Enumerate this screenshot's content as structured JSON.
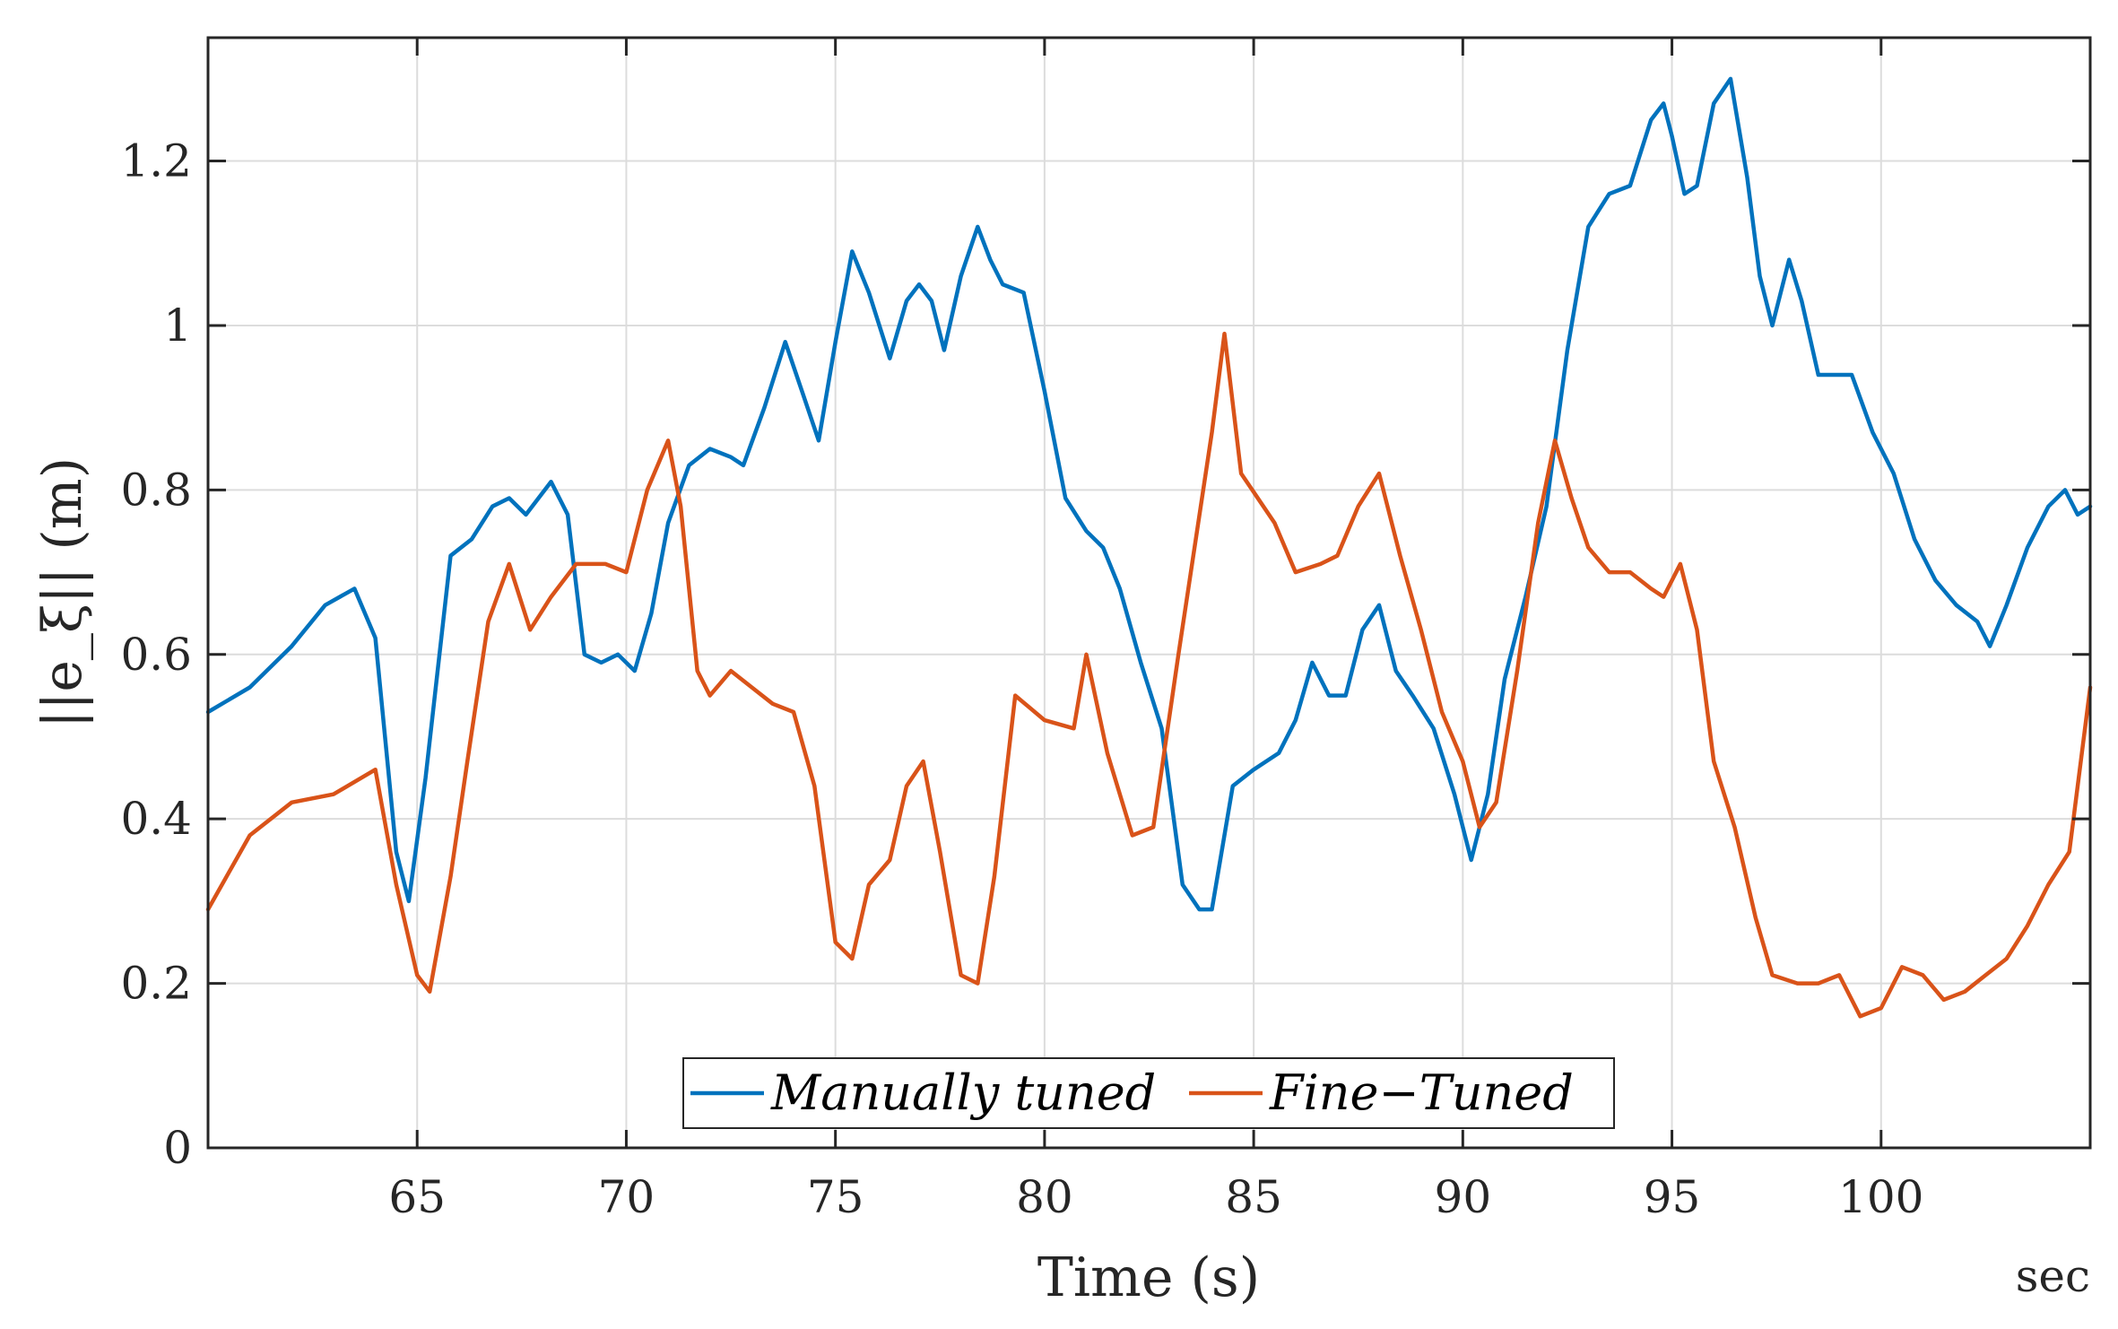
{
  "chart_data": {
    "type": "line",
    "title": "",
    "xlabel": "Time (s)",
    "ylabel": "||e_ξ|| (m)",
    "x_unit_label": "sec",
    "xlim": [
      60,
      105
    ],
    "ylim": [
      0,
      1.35
    ],
    "xticks": [
      65,
      70,
      75,
      80,
      85,
      90,
      95,
      100
    ],
    "yticks": [
      0,
      0.2,
      0.4,
      0.6,
      0.8,
      1,
      1.2
    ],
    "xtick_labels": [
      "65",
      "70",
      "75",
      "80",
      "85",
      "90",
      "95",
      "100"
    ],
    "ytick_labels": [
      "0",
      "0.2",
      "0.4",
      "0.6",
      "0.8",
      "1",
      "1.2"
    ],
    "grid": true,
    "legend_position": "bottom-center",
    "series": [
      {
        "name": "Manually tuned",
        "color": "#0072BD",
        "points": [
          [
            60,
            0.53
          ],
          [
            61,
            0.56
          ],
          [
            62,
            0.61
          ],
          [
            62.8,
            0.66
          ],
          [
            63.5,
            0.68
          ],
          [
            64,
            0.62
          ],
          [
            64.5,
            0.36
          ],
          [
            64.8,
            0.3
          ],
          [
            65.2,
            0.45
          ],
          [
            65.8,
            0.72
          ],
          [
            66.3,
            0.74
          ],
          [
            66.8,
            0.78
          ],
          [
            67.2,
            0.79
          ],
          [
            67.6,
            0.77
          ],
          [
            68.2,
            0.81
          ],
          [
            68.6,
            0.77
          ],
          [
            69,
            0.6
          ],
          [
            69.4,
            0.59
          ],
          [
            69.8,
            0.6
          ],
          [
            70.2,
            0.58
          ],
          [
            70.6,
            0.65
          ],
          [
            71,
            0.76
          ],
          [
            71.5,
            0.83
          ],
          [
            72,
            0.85
          ],
          [
            72.5,
            0.84
          ],
          [
            72.8,
            0.83
          ],
          [
            73.3,
            0.9
          ],
          [
            73.8,
            0.98
          ],
          [
            74.2,
            0.92
          ],
          [
            74.6,
            0.86
          ],
          [
            75,
            0.98
          ],
          [
            75.4,
            1.09
          ],
          [
            75.8,
            1.04
          ],
          [
            76.3,
            0.96
          ],
          [
            76.7,
            1.03
          ],
          [
            77,
            1.05
          ],
          [
            77.3,
            1.03
          ],
          [
            77.6,
            0.97
          ],
          [
            78,
            1.06
          ],
          [
            78.4,
            1.12
          ],
          [
            78.7,
            1.08
          ],
          [
            79,
            1.05
          ],
          [
            79.5,
            1.04
          ],
          [
            80,
            0.92
          ],
          [
            80.5,
            0.79
          ],
          [
            81,
            0.75
          ],
          [
            81.4,
            0.73
          ],
          [
            81.8,
            0.68
          ],
          [
            82.3,
            0.59
          ],
          [
            82.8,
            0.51
          ],
          [
            83.3,
            0.32
          ],
          [
            83.7,
            0.29
          ],
          [
            84,
            0.29
          ],
          [
            84.5,
            0.44
          ],
          [
            85,
            0.46
          ],
          [
            85.6,
            0.48
          ],
          [
            86,
            0.52
          ],
          [
            86.4,
            0.59
          ],
          [
            86.8,
            0.55
          ],
          [
            87.2,
            0.55
          ],
          [
            87.6,
            0.63
          ],
          [
            88,
            0.66
          ],
          [
            88.4,
            0.58
          ],
          [
            88.8,
            0.55
          ],
          [
            89.3,
            0.51
          ],
          [
            89.8,
            0.43
          ],
          [
            90.2,
            0.35
          ],
          [
            90.6,
            0.43
          ],
          [
            91,
            0.57
          ],
          [
            91.5,
            0.67
          ],
          [
            92,
            0.78
          ],
          [
            92.5,
            0.97
          ],
          [
            93,
            1.12
          ],
          [
            93.5,
            1.16
          ],
          [
            94,
            1.17
          ],
          [
            94.5,
            1.25
          ],
          [
            94.8,
            1.27
          ],
          [
            95,
            1.23
          ],
          [
            95.3,
            1.16
          ],
          [
            95.6,
            1.17
          ],
          [
            96,
            1.27
          ],
          [
            96.4,
            1.3
          ],
          [
            96.8,
            1.18
          ],
          [
            97.1,
            1.06
          ],
          [
            97.4,
            1.0
          ],
          [
            97.8,
            1.08
          ],
          [
            98.1,
            1.03
          ],
          [
            98.5,
            0.94
          ],
          [
            98.9,
            0.94
          ],
          [
            99.3,
            0.94
          ],
          [
            99.8,
            0.87
          ],
          [
            100.3,
            0.82
          ],
          [
            100.8,
            0.74
          ],
          [
            101.3,
            0.69
          ],
          [
            101.8,
            0.66
          ],
          [
            102.3,
            0.64
          ],
          [
            102.6,
            0.61
          ],
          [
            103,
            0.66
          ],
          [
            103.5,
            0.73
          ],
          [
            104,
            0.78
          ],
          [
            104.4,
            0.8
          ],
          [
            104.7,
            0.77
          ],
          [
            105,
            0.78
          ]
        ]
      },
      {
        "name": "Fine−Tuned",
        "color": "#D95319",
        "points": [
          [
            60,
            0.29
          ],
          [
            61,
            0.38
          ],
          [
            62,
            0.42
          ],
          [
            63,
            0.43
          ],
          [
            64,
            0.46
          ],
          [
            64.5,
            0.32
          ],
          [
            65,
            0.21
          ],
          [
            65.3,
            0.19
          ],
          [
            65.8,
            0.33
          ],
          [
            66.2,
            0.47
          ],
          [
            66.7,
            0.64
          ],
          [
            67.2,
            0.71
          ],
          [
            67.7,
            0.63
          ],
          [
            68.2,
            0.67
          ],
          [
            68.8,
            0.71
          ],
          [
            69.5,
            0.71
          ],
          [
            70,
            0.7
          ],
          [
            70.5,
            0.8
          ],
          [
            71,
            0.86
          ],
          [
            71.3,
            0.78
          ],
          [
            71.7,
            0.58
          ],
          [
            72,
            0.55
          ],
          [
            72.5,
            0.58
          ],
          [
            73,
            0.56
          ],
          [
            73.5,
            0.54
          ],
          [
            74,
            0.53
          ],
          [
            74.5,
            0.44
          ],
          [
            75,
            0.25
          ],
          [
            75.4,
            0.23
          ],
          [
            75.8,
            0.32
          ],
          [
            76.3,
            0.35
          ],
          [
            76.7,
            0.44
          ],
          [
            77.1,
            0.47
          ],
          [
            77.5,
            0.36
          ],
          [
            78,
            0.21
          ],
          [
            78.4,
            0.2
          ],
          [
            78.8,
            0.33
          ],
          [
            79.3,
            0.55
          ],
          [
            80,
            0.52
          ],
          [
            80.7,
            0.51
          ],
          [
            81,
            0.6
          ],
          [
            81.5,
            0.48
          ],
          [
            82.1,
            0.38
          ],
          [
            82.6,
            0.39
          ],
          [
            83.2,
            0.6
          ],
          [
            84,
            0.87
          ],
          [
            84.3,
            0.99
          ],
          [
            84.7,
            0.82
          ],
          [
            85.5,
            0.76
          ],
          [
            86,
            0.7
          ],
          [
            86.6,
            0.71
          ],
          [
            87,
            0.72
          ],
          [
            87.5,
            0.78
          ],
          [
            88,
            0.82
          ],
          [
            88.5,
            0.72
          ],
          [
            89,
            0.63
          ],
          [
            89.5,
            0.53
          ],
          [
            90,
            0.47
          ],
          [
            90.4,
            0.39
          ],
          [
            90.8,
            0.42
          ],
          [
            91.3,
            0.58
          ],
          [
            91.8,
            0.76
          ],
          [
            92.2,
            0.86
          ],
          [
            92.6,
            0.79
          ],
          [
            93,
            0.73
          ],
          [
            93.5,
            0.7
          ],
          [
            94,
            0.7
          ],
          [
            94.5,
            0.68
          ],
          [
            94.8,
            0.67
          ],
          [
            95.2,
            0.71
          ],
          [
            95.6,
            0.63
          ],
          [
            96,
            0.47
          ],
          [
            96.5,
            0.39
          ],
          [
            97,
            0.28
          ],
          [
            97.4,
            0.21
          ],
          [
            98,
            0.2
          ],
          [
            98.5,
            0.2
          ],
          [
            99,
            0.21
          ],
          [
            99.5,
            0.16
          ],
          [
            100,
            0.17
          ],
          [
            100.5,
            0.22
          ],
          [
            101,
            0.21
          ],
          [
            101.5,
            0.18
          ],
          [
            102,
            0.19
          ],
          [
            102.5,
            0.21
          ],
          [
            103,
            0.23
          ],
          [
            103.5,
            0.27
          ],
          [
            104,
            0.32
          ],
          [
            104.5,
            0.36
          ],
          [
            105,
            0.56
          ]
        ]
      }
    ]
  }
}
